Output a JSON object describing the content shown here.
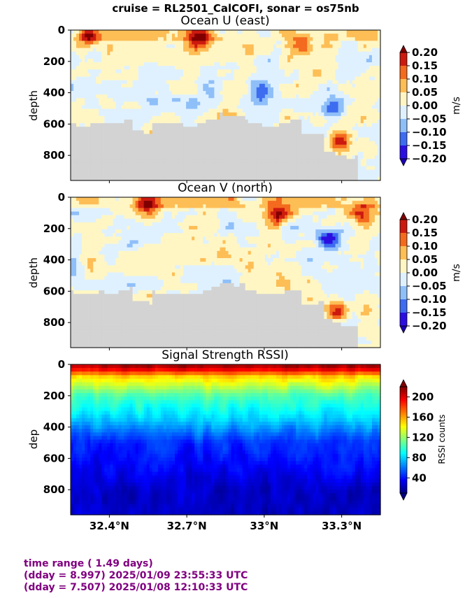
{
  "suptitle": "cruise = RL2501_CalCOFI,  sonar = os75nb",
  "footer": {
    "line1": "time range ( 1.49 days)",
    "line2": "(dday = 8.997) 2025/01/09 23:55:33 UTC",
    "line3": "(dday = 7.507) 2025/01/08 12:10:33 UTC"
  },
  "colors": {
    "footer_text": "#800080",
    "no_data": "#d3d3d3"
  },
  "chart_data": [
    {
      "type": "heatmap",
      "title": "Ocean U (east)",
      "ylabel": "depth",
      "ylim": [
        960,
        0
      ],
      "yticks": [
        "0",
        "200",
        "400",
        "600",
        "800"
      ],
      "xlim": [
        32.25,
        33.45
      ],
      "xticks_shown": false,
      "colormap": "RdYlBu_r (diverging)",
      "colorbar_label": "m/s",
      "colorbar_range": [
        -0.2,
        0.2
      ],
      "colorbar_ticks": [
        "0.20",
        "0.15",
        "0.10",
        "0.05",
        "0.00",
        "−0.05",
        "−0.10",
        "−0.15",
        "−0.20"
      ],
      "colorbar_extend": "both",
      "features": [
        {
          "lat": 32.32,
          "depth": 40,
          "value": 0.2
        },
        {
          "lat": 32.75,
          "depth": 40,
          "value": 0.2
        },
        {
          "lat": 33.15,
          "depth": 100,
          "value": 0.15
        },
        {
          "lat": 32.98,
          "depth": 380,
          "value": -0.15
        },
        {
          "lat": 33.27,
          "depth": 500,
          "value": -0.15
        },
        {
          "lat": 33.29,
          "depth": 720,
          "value": 0.2
        }
      ],
      "no_data_below_depth": 590
    },
    {
      "type": "heatmap",
      "title": "Ocean V (north)",
      "ylabel": "depth",
      "ylim": [
        960,
        0
      ],
      "yticks": [
        "0",
        "200",
        "400",
        "600",
        "800"
      ],
      "xlim": [
        32.25,
        33.45
      ],
      "xticks_shown": false,
      "colormap": "RdYlBu_r (diverging)",
      "colorbar_label": "m/s",
      "colorbar_range": [
        -0.2,
        0.2
      ],
      "colorbar_ticks": [
        "0.20",
        "0.15",
        "0.10",
        "0.05",
        "0.00",
        "−0.05",
        "−0.10",
        "−0.15",
        "−0.20"
      ],
      "colorbar_extend": "both",
      "features": [
        {
          "lat": 32.55,
          "depth": 40,
          "value": 0.2
        },
        {
          "lat": 33.05,
          "depth": 110,
          "value": 0.2
        },
        {
          "lat": 33.38,
          "depth": 100,
          "value": 0.15
        },
        {
          "lat": 33.28,
          "depth": 730,
          "value": 0.2
        },
        {
          "lat": 33.25,
          "depth": 270,
          "value": -0.2
        }
      ],
      "no_data_below_depth": 600
    },
    {
      "type": "heatmap",
      "title": "Signal Strength RSSI)",
      "ylabel": "dep",
      "ylim": [
        960,
        0
      ],
      "yticks": [
        "0",
        "200",
        "400",
        "600",
        "800"
      ],
      "xlim": [
        32.25,
        33.45
      ],
      "xticks": [
        "32.4°N",
        "32.7°N",
        "33°N",
        "33.3°N"
      ],
      "xtick_values": [
        32.4,
        32.7,
        33.0,
        33.3
      ],
      "colormap": "jet",
      "colorbar_label": "RSSI counts",
      "colorbar_range": [
        10,
        220
      ],
      "colorbar_ticks": [
        "200",
        "160",
        "120",
        "80",
        "40"
      ],
      "colorbar_extend": "both",
      "profile": [
        {
          "depth": 20,
          "value": 210
        },
        {
          "depth": 80,
          "value": 150
        },
        {
          "depth": 200,
          "value": 105
        },
        {
          "depth": 350,
          "value": 80
        },
        {
          "depth": 500,
          "value": 45
        },
        {
          "depth": 800,
          "value": 25
        }
      ]
    }
  ]
}
